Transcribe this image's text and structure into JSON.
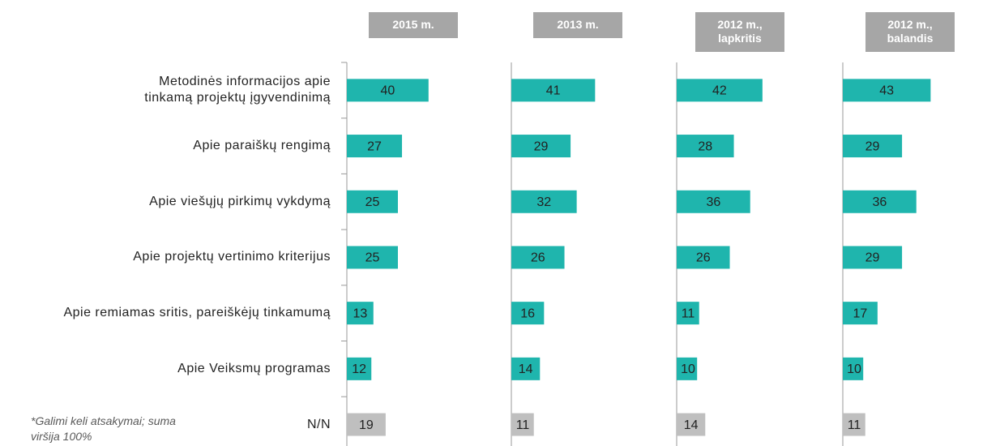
{
  "chart_data": {
    "type": "bar",
    "orientation": "horizontal",
    "categories": [
      "Metodinės informacijos apie tinkamą projektų įgyvendinimą",
      "Apie paraiškų rengimą",
      "Apie viešųjų pirkimų vykdymą",
      "Apie projektų vertinimo kriterijus",
      "Apie remiamas sritis, pareiškėjų tinkamumą",
      "Apie Veiksmų programas",
      "N/N"
    ],
    "category_colors": [
      "#1fb5ad",
      "#1fb5ad",
      "#1fb5ad",
      "#1fb5ad",
      "#1fb5ad",
      "#1fb5ad",
      "#bfbfbf"
    ],
    "series": [
      {
        "name": "2015 m.",
        "values": [
          40,
          27,
          25,
          25,
          13,
          12,
          19
        ]
      },
      {
        "name": "2013 m.",
        "values": [
          41,
          29,
          32,
          26,
          16,
          14,
          11
        ]
      },
      {
        "name": "2012 m., lapkritis",
        "values": [
          42,
          28,
          36,
          26,
          11,
          10,
          14
        ]
      },
      {
        "name": "2012 m., balandis",
        "values": [
          43,
          29,
          36,
          29,
          17,
          10,
          11
        ]
      }
    ],
    "note": "*Galimi keli atsakymai; suma viršija 100%"
  }
}
